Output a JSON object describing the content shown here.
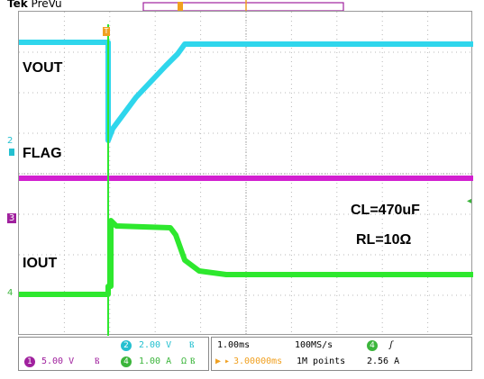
{
  "header": {
    "brand": "Tek",
    "mode": "PreVu"
  },
  "labels": {
    "vout": "VOUT",
    "flag": "FLAG",
    "iout": "IOUT",
    "cl": "CL=470uF",
    "rl": "RL=10Ω"
  },
  "channels": {
    "ch1": {
      "number": "1",
      "scale": "5.00 V",
      "color": "#a0219e"
    },
    "ch2": {
      "number": "2",
      "scale": "2.00 V",
      "color": "#24c0d0"
    },
    "ch4": {
      "number": "4",
      "scale": "1.00 A",
      "unit_suffix": "Ω",
      "color": "#3bb53b"
    }
  },
  "timebase": {
    "scale": "1.00ms",
    "sample_rate": "100MS/s",
    "trigger_delay": "3.00000ms",
    "record_length": "1M points",
    "trigger_channel": "4",
    "trigger_level": "2.56 A"
  },
  "colors": {
    "vout": "#2fd6ec",
    "flag": "#d21fd0",
    "iout": "#2ee82e",
    "trigger": "#f0a020",
    "grid": "#b8b8b8"
  }
}
